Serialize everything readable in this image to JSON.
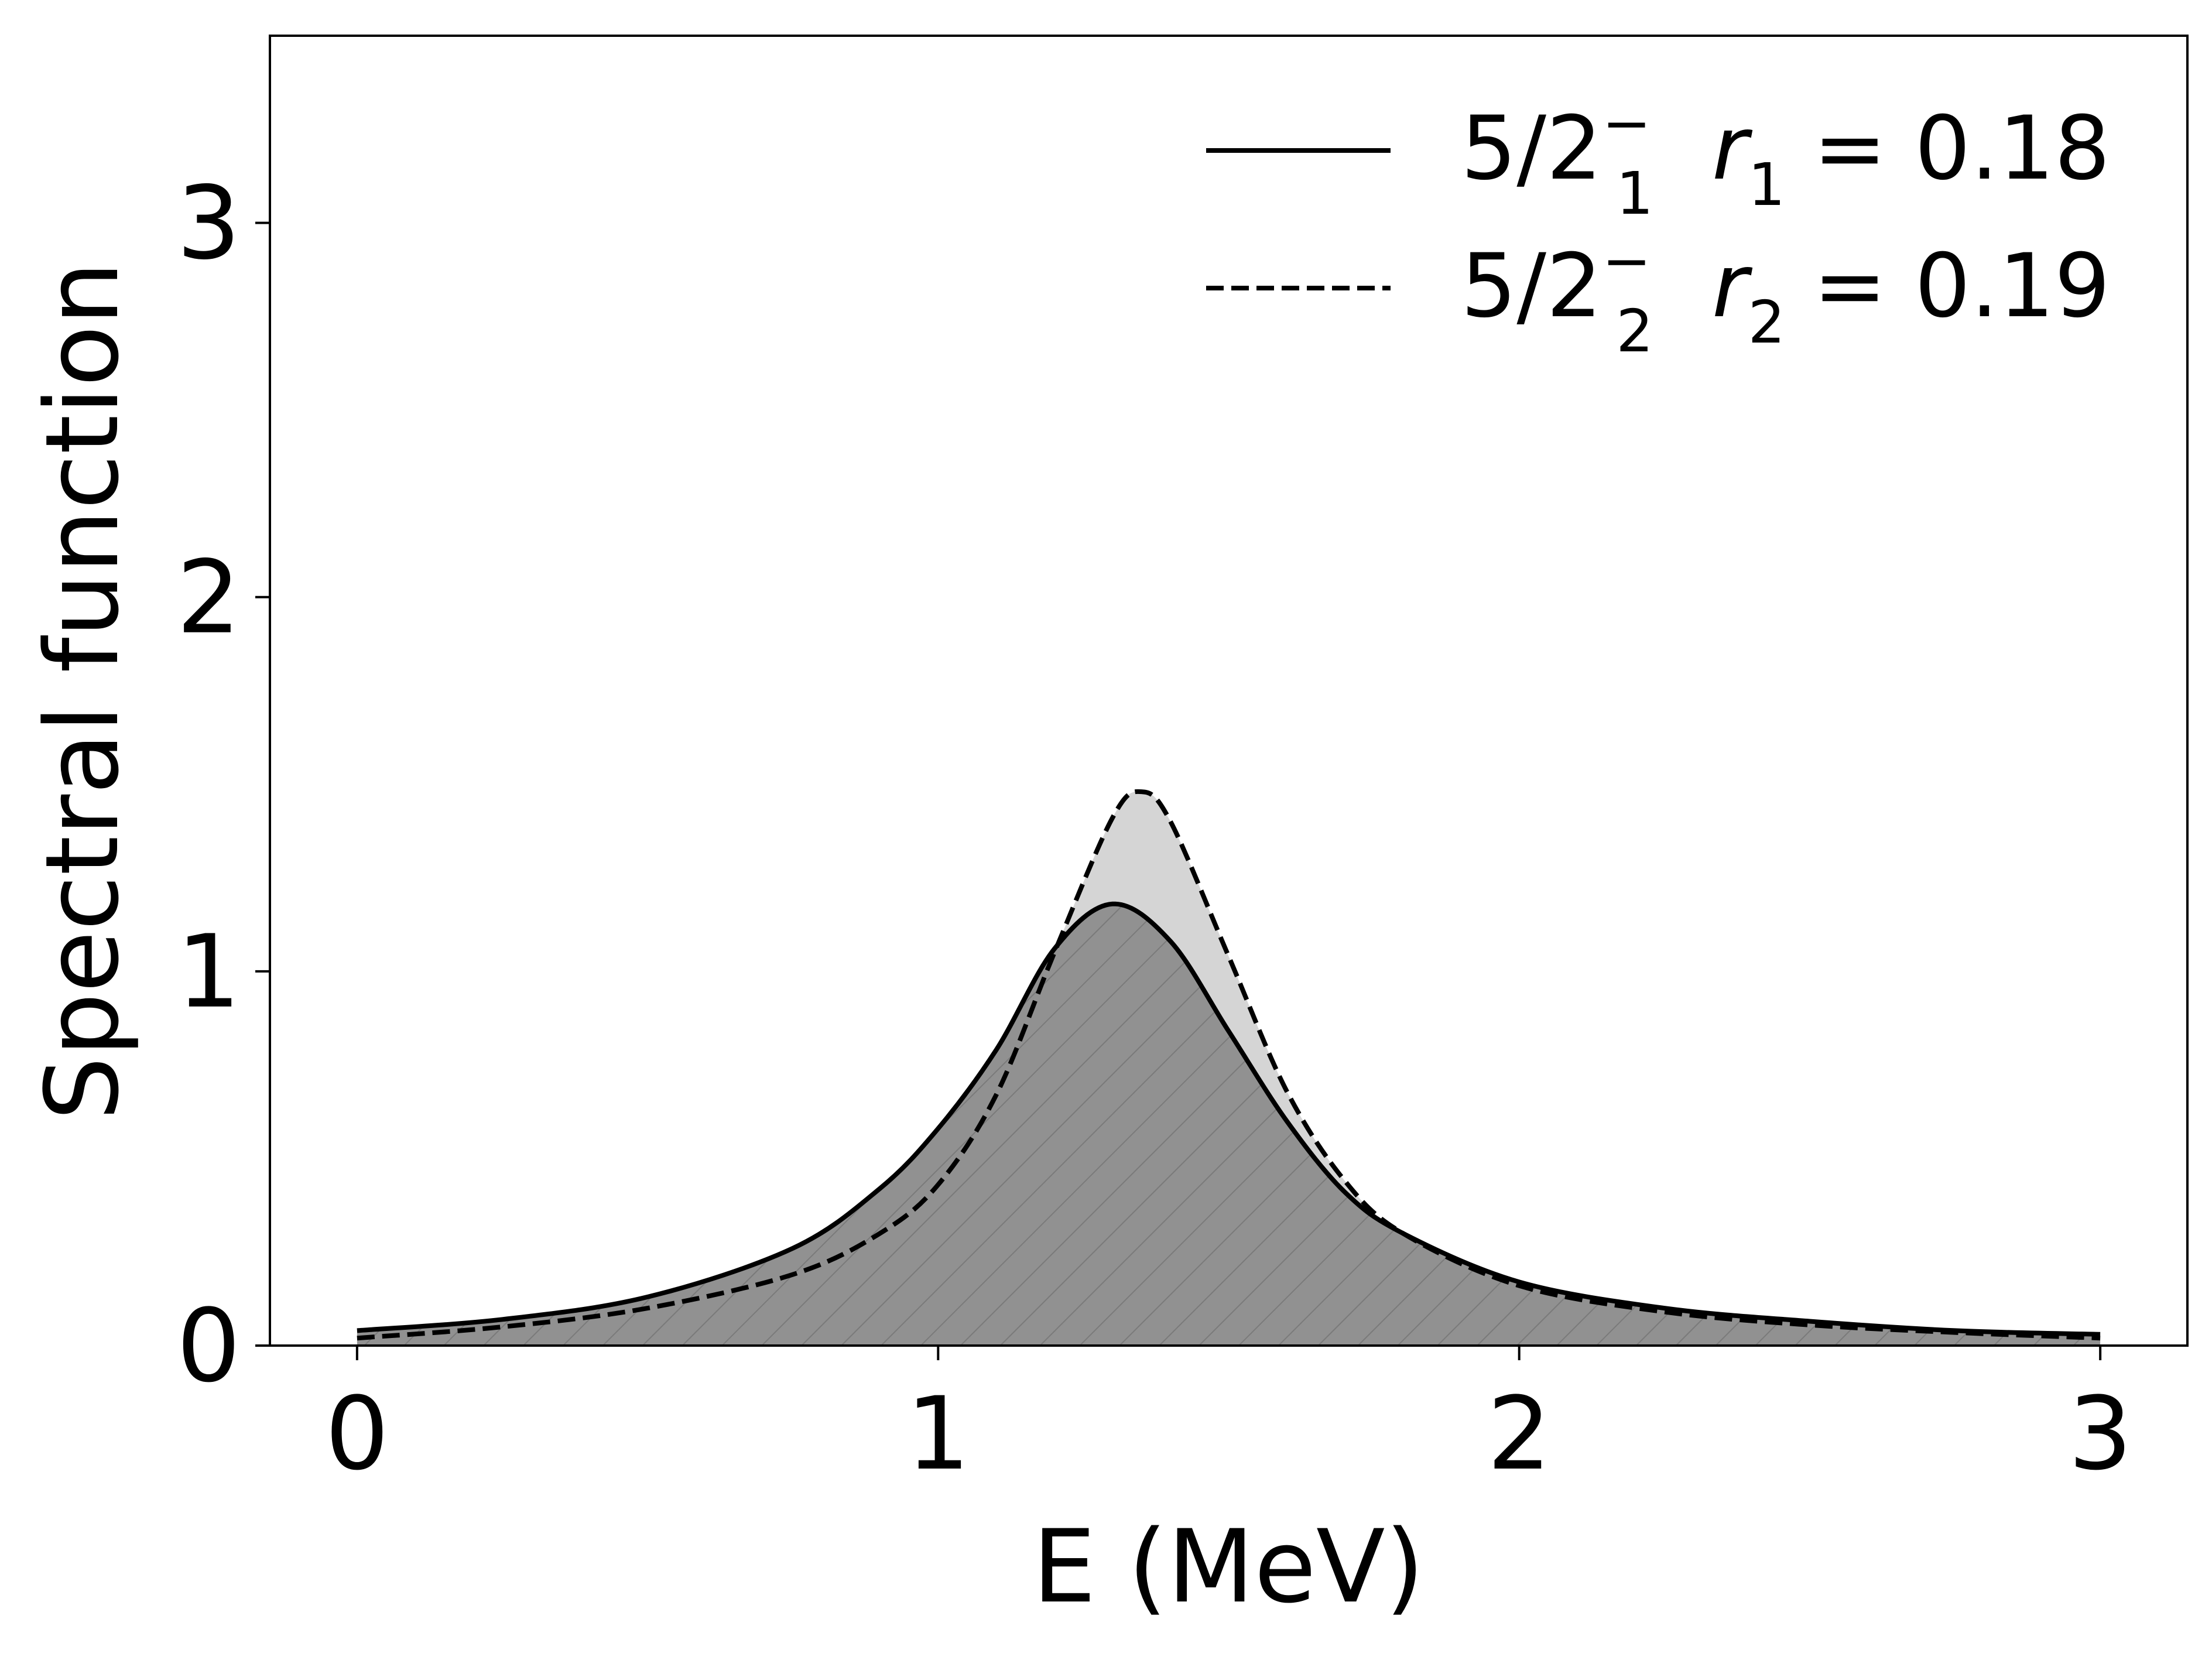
{
  "chart_data": {
    "type": "line",
    "title": "",
    "xlabel": "E (MeV)",
    "ylabel": "Spectral function",
    "xlim": [
      -0.15,
      3.15
    ],
    "ylim": [
      0,
      3.5
    ],
    "x_ticks": [
      0,
      1,
      2,
      3
    ],
    "y_ticks": [
      0,
      1,
      2,
      3
    ],
    "grid": false,
    "legend_position": "top-right",
    "series": [
      {
        "name": "5/2₁⁻  r₁ = 0.18",
        "legend": {
          "state": "5/2",
          "sub": "1",
          "sup": "−",
          "r": "r",
          "r_sub": "1",
          "value": "= 0.18"
        },
        "style": "solid",
        "color": "#000000",
        "fill": "#d3d3d3",
        "x": [
          0,
          0.25,
          0.5,
          0.75,
          0.9,
          1.0,
          1.1,
          1.2,
          1.3,
          1.4,
          1.5,
          1.6,
          1.7,
          1.8,
          2.0,
          2.25,
          2.5,
          2.75,
          3.0
        ],
        "y": [
          0.04,
          0.07,
          0.13,
          0.26,
          0.42,
          0.58,
          0.79,
          1.06,
          1.18,
          1.08,
          0.84,
          0.6,
          0.41,
          0.3,
          0.17,
          0.1,
          0.065,
          0.04,
          0.03
        ]
      },
      {
        "name": "5/2₂⁻  r₂ = 0.19",
        "legend": {
          "state": "5/2",
          "sub": "2",
          "sup": "−",
          "r": "r",
          "r_sub": "2",
          "value": "= 0.19"
        },
        "style": "dashed",
        "color": "#000000",
        "fill": "#909090",
        "hatch": "diagonal",
        "x": [
          0,
          0.25,
          0.5,
          0.75,
          0.9,
          1.0,
          1.1,
          1.2,
          1.3,
          1.35,
          1.4,
          1.5,
          1.6,
          1.7,
          1.8,
          2.0,
          2.25,
          2.5,
          2.75,
          3.0
        ],
        "y": [
          0.02,
          0.05,
          0.1,
          0.19,
          0.3,
          0.43,
          0.67,
          1.05,
          1.41,
          1.48,
          1.4,
          1.04,
          0.68,
          0.44,
          0.3,
          0.16,
          0.09,
          0.055,
          0.035,
          0.02
        ]
      }
    ]
  }
}
